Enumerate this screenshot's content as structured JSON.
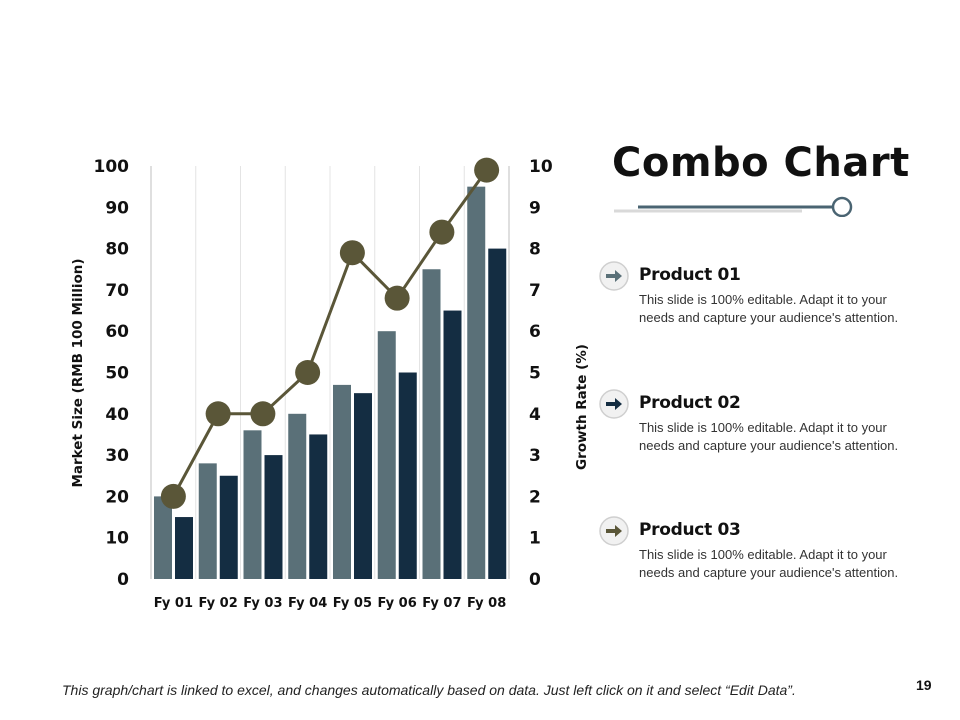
{
  "title": "Combo Chart",
  "colors": {
    "bar_series_1": "#5a7078",
    "bar_series_2": "#142d42",
    "line_series": "#5a5638",
    "grid": "#e4e4e4"
  },
  "chart_data": {
    "type": "bar+line",
    "categories": [
      "Fy 01",
      "Fy 02",
      "Fy 03",
      "Fy 04",
      "Fy 05",
      "Fy 06",
      "Fy 07",
      "Fy 08"
    ],
    "series": [
      {
        "name": "Product 01",
        "type": "bar",
        "axis": "left",
        "values": [
          20,
          28,
          36,
          40,
          47,
          60,
          75,
          95
        ]
      },
      {
        "name": "Product 02",
        "type": "bar",
        "axis": "left",
        "values": [
          15,
          25,
          30,
          35,
          45,
          50,
          65,
          80
        ]
      },
      {
        "name": "Product 03",
        "type": "line",
        "axis": "right",
        "values": [
          2,
          4,
          4,
          5,
          7.9,
          6.8,
          8.4,
          9.9
        ]
      }
    ],
    "ylabel": "Market Size (RMB 100 Million)",
    "ylabel_right": "Growth Rate (%)",
    "ylim": [
      0,
      100
    ],
    "ylim_right": [
      0,
      10
    ],
    "yticks": [
      0,
      10,
      20,
      30,
      40,
      50,
      60,
      70,
      80,
      90,
      100
    ],
    "yticks_right": [
      0,
      1,
      2,
      3,
      4,
      5,
      6,
      7,
      8,
      9,
      10
    ],
    "grid": true
  },
  "products": [
    {
      "name": "Product 01",
      "icon": "arrow-right-icon",
      "description": "This slide is 100% editable. Adapt it to your needs and capture your audience's attention."
    },
    {
      "name": "Product 02",
      "icon": "arrow-right-icon",
      "description": "This slide is 100% editable. Adapt it to your needs and capture your audience's attention."
    },
    {
      "name": "Product 03",
      "icon": "arrow-right-icon",
      "description": "This slide is 100% editable. Adapt it to your needs and capture your audience's attention."
    }
  ],
  "footer": "This graph/chart is linked to excel, and changes automatically based on data. Just left click on it and select “Edit Data”.",
  "page_number": "19"
}
